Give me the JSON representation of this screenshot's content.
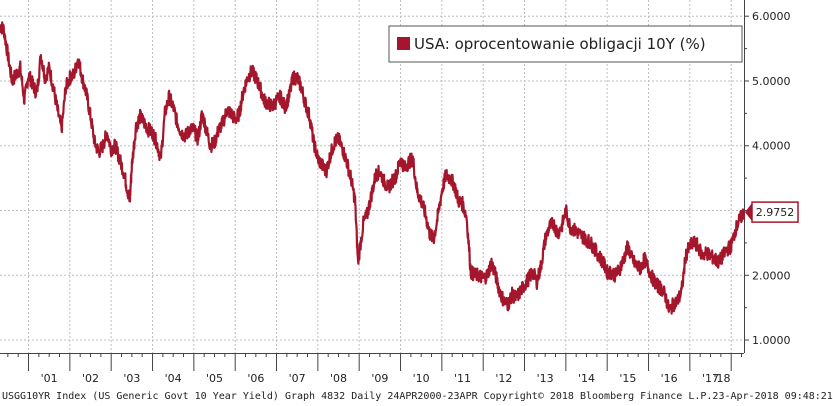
{
  "chart_data": {
    "type": "line",
    "legend": {
      "label": "USA: oprocentowanie obligacji 10Y (%)",
      "placement": "top-right",
      "color": "#a3162b"
    },
    "series_color": "#a3162b",
    "last_value": {
      "label": "2.9752",
      "value": 2.9752
    },
    "y_axis": {
      "side": "right",
      "ylim": [
        0.8,
        6.25
      ],
      "ticks": [
        {
          "value": 6.0,
          "label": "6.0000"
        },
        {
          "value": 5.0,
          "label": "5.0000"
        },
        {
          "value": 4.0,
          "label": "4.0000"
        },
        {
          "value": 3.0,
          "label": "3.0000"
        },
        {
          "value": 2.0,
          "label": "2.0000"
        },
        {
          "value": 1.0,
          "label": "1.0000"
        }
      ]
    },
    "x_axis": {
      "xlim": [
        2000.31,
        2018.31
      ],
      "ticks": [
        {
          "value": 2001.5,
          "label": "'01"
        },
        {
          "value": 2002.5,
          "label": "'02"
        },
        {
          "value": 2003.5,
          "label": "'03"
        },
        {
          "value": 2004.5,
          "label": "'04"
        },
        {
          "value": 2005.5,
          "label": "'05"
        },
        {
          "value": 2006.5,
          "label": "'06"
        },
        {
          "value": 2007.5,
          "label": "'07"
        },
        {
          "value": 2008.5,
          "label": "'08"
        },
        {
          "value": 2009.5,
          "label": "'09"
        },
        {
          "value": 2010.5,
          "label": "'10"
        },
        {
          "value": 2011.5,
          "label": "'11"
        },
        {
          "value": 2012.5,
          "label": "'12"
        },
        {
          "value": 2013.5,
          "label": "'13"
        },
        {
          "value": 2014.5,
          "label": "'14"
        },
        {
          "value": 2015.5,
          "label": "'15"
        },
        {
          "value": 2016.5,
          "label": "'16"
        },
        {
          "value": 2017.5,
          "label": "'17"
        },
        {
          "value": 2018.5,
          "label": "'18"
        }
      ]
    },
    "grid": true,
    "series": [
      {
        "x": [
          2000.31,
          2000.4,
          2000.5,
          2000.6,
          2000.7,
          2000.8,
          2000.9,
          2001.0,
          2001.1,
          2001.2,
          2001.3,
          2001.4,
          2001.5,
          2001.6,
          2001.7,
          2001.8,
          2001.9,
          2002.0,
          2002.1,
          2002.2,
          2002.3,
          2002.4,
          2002.5,
          2002.6,
          2002.7,
          2002.8,
          2002.9,
          2003.0,
          2003.1,
          2003.2,
          2003.3,
          2003.4,
          2003.45,
          2003.5,
          2003.6,
          2003.7,
          2003.8,
          2003.9,
          2004.0,
          2004.1,
          2004.2,
          2004.3,
          2004.4,
          2004.5,
          2004.6,
          2004.7,
          2004.8,
          2004.9,
          2005.0,
          2005.1,
          2005.2,
          2005.3,
          2005.4,
          2005.5,
          2005.6,
          2005.7,
          2005.8,
          2005.9,
          2006.0,
          2006.1,
          2006.2,
          2006.3,
          2006.4,
          2006.5,
          2006.6,
          2006.7,
          2006.8,
          2006.9,
          2007.0,
          2007.1,
          2007.2,
          2007.3,
          2007.4,
          2007.5,
          2007.6,
          2007.7,
          2007.8,
          2007.9,
          2008.0,
          2008.1,
          2008.2,
          2008.3,
          2008.4,
          2008.5,
          2008.6,
          2008.7,
          2008.8,
          2008.9,
          2008.97,
          2009.1,
          2009.2,
          2009.3,
          2009.4,
          2009.5,
          2009.6,
          2009.7,
          2009.8,
          2009.9,
          2010.0,
          2010.1,
          2010.2,
          2010.3,
          2010.4,
          2010.5,
          2010.6,
          2010.7,
          2010.8,
          2010.9,
          2011.0,
          2011.1,
          2011.2,
          2011.3,
          2011.4,
          2011.5,
          2011.6,
          2011.7,
          2011.8,
          2011.9,
          2012.0,
          2012.1,
          2012.2,
          2012.3,
          2012.4,
          2012.5,
          2012.6,
          2012.7,
          2012.8,
          2012.9,
          2013.0,
          2013.1,
          2013.2,
          2013.3,
          2013.4,
          2013.5,
          2013.6,
          2013.7,
          2013.8,
          2013.9,
          2014.0,
          2014.1,
          2014.2,
          2014.3,
          2014.4,
          2014.5,
          2014.6,
          2014.7,
          2014.8,
          2014.9,
          2015.0,
          2015.1,
          2015.2,
          2015.3,
          2015.4,
          2015.5,
          2015.6,
          2015.7,
          2015.8,
          2015.9,
          2016.0,
          2016.1,
          2016.2,
          2016.3,
          2016.4,
          2016.5,
          2016.6,
          2016.7,
          2016.8,
          2016.9,
          2017.0,
          2017.1,
          2017.2,
          2017.3,
          2017.4,
          2017.5,
          2017.6,
          2017.7,
          2017.8,
          2017.9,
          2018.0,
          2018.1,
          2018.2,
          2018.31
        ],
        "values": [
          5.85,
          5.8,
          5.4,
          5.0,
          5.1,
          5.2,
          4.7,
          5.1,
          4.95,
          4.8,
          5.4,
          5.05,
          5.2,
          4.9,
          4.55,
          4.25,
          4.9,
          5.05,
          5.1,
          5.35,
          5.05,
          4.8,
          4.45,
          4.05,
          3.9,
          4.0,
          4.2,
          3.95,
          4.0,
          3.8,
          3.6,
          3.3,
          3.15,
          3.7,
          4.3,
          4.45,
          4.35,
          4.25,
          4.2,
          4.05,
          3.8,
          4.5,
          4.75,
          4.6,
          4.35,
          4.2,
          4.15,
          4.25,
          4.25,
          4.1,
          4.5,
          4.25,
          4.0,
          4.05,
          4.25,
          4.35,
          4.55,
          4.5,
          4.4,
          4.5,
          4.85,
          5.05,
          5.15,
          5.05,
          4.9,
          4.7,
          4.65,
          4.6,
          4.7,
          4.75,
          4.6,
          4.75,
          5.05,
          5.05,
          4.9,
          4.65,
          4.45,
          4.05,
          3.8,
          3.7,
          3.6,
          3.85,
          4.05,
          4.1,
          3.95,
          3.75,
          3.5,
          3.15,
          2.2,
          2.8,
          2.95,
          3.25,
          3.55,
          3.6,
          3.45,
          3.35,
          3.45,
          3.55,
          3.8,
          3.65,
          3.75,
          3.8,
          3.3,
          3.15,
          2.95,
          2.65,
          2.55,
          2.9,
          3.3,
          3.55,
          3.5,
          3.4,
          3.15,
          3.1,
          2.9,
          2.05,
          2.0,
          2.0,
          1.95,
          2.0,
          2.2,
          2.0,
          1.75,
          1.6,
          1.55,
          1.7,
          1.65,
          1.75,
          1.85,
          1.95,
          2.05,
          1.9,
          2.15,
          2.55,
          2.75,
          2.8,
          2.65,
          2.75,
          3.0,
          2.75,
          2.7,
          2.65,
          2.6,
          2.55,
          2.5,
          2.4,
          2.3,
          2.2,
          2.05,
          2.05,
          2.0,
          2.1,
          2.25,
          2.45,
          2.25,
          2.15,
          2.1,
          2.25,
          2.1,
          1.95,
          1.85,
          1.8,
          1.7,
          1.45,
          1.55,
          1.6,
          1.75,
          2.3,
          2.45,
          2.5,
          2.45,
          2.3,
          2.35,
          2.3,
          2.25,
          2.2,
          2.3,
          2.4,
          2.45,
          2.7,
          2.85,
          2.98
        ]
      }
    ]
  },
  "footer": {
    "source": "USGG10YR Index (US Generic Govt 10 Year Yield) Graph 4832  Daily 24APR2000-23APR  Copyright© 2018 Bloomberg Finance L.P.",
    "timestamp": "23-Apr-2018 09:48:21"
  }
}
